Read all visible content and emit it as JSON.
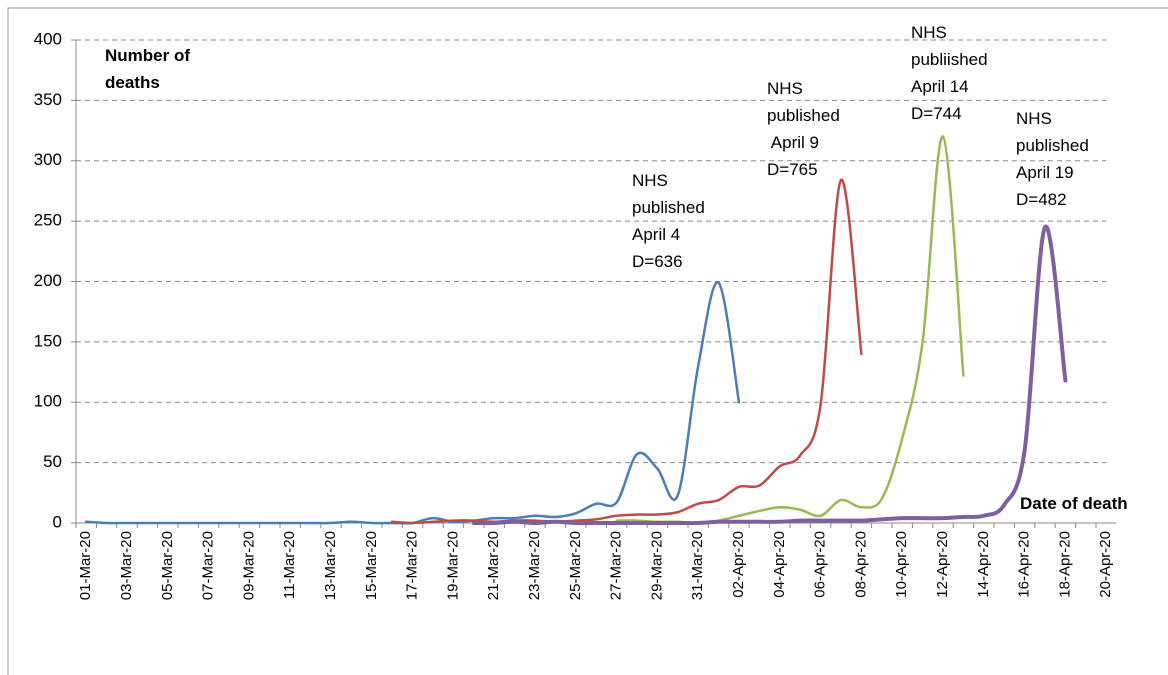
{
  "chart_data": {
    "type": "line",
    "y_label_lines": [
      "Number of",
      "deaths"
    ],
    "x_label": "Date of death",
    "categories": [
      "01-Mar-20",
      null,
      "03-Mar-20",
      null,
      "05-Mar-20",
      null,
      "07-Mar-20",
      null,
      "09-Mar-20",
      null,
      "11-Mar-20",
      null,
      "13-Mar-20",
      null,
      "15-Mar-20",
      null,
      "17-Mar-20",
      null,
      "19-Mar-20",
      null,
      "21-Mar-20",
      null,
      "23-Mar-20",
      null,
      "25-Mar-20",
      null,
      "27-Mar-20",
      null,
      "29-Mar-20",
      null,
      "31-Mar-20",
      null,
      "02-Apr-20",
      null,
      "04-Apr-20",
      null,
      "06-Apr-20",
      null,
      "08-Apr-20",
      null,
      "10-Apr-20",
      null,
      "12-Apr-20",
      null,
      "14-Apr-20",
      null,
      "16-Apr-20",
      null,
      "18-Apr-20",
      null,
      "20-Apr-20"
    ],
    "ylim": [
      0,
      400
    ],
    "yticks": [
      0,
      50,
      100,
      150,
      200,
      250,
      300,
      350,
      400
    ],
    "grid": true,
    "series": [
      {
        "color": "#4a7ebb",
        "width": 2.5,
        "values": [
          1,
          0,
          0,
          0,
          0,
          0,
          0,
          0,
          0,
          0,
          0,
          0,
          0,
          1,
          0,
          0,
          0,
          4,
          1,
          2,
          4,
          4,
          6,
          5,
          8,
          16,
          17,
          57,
          45,
          23,
          130,
          199,
          100,
          null,
          null,
          null,
          null,
          null,
          null,
          null,
          null,
          null,
          null,
          null,
          null,
          null,
          null,
          null,
          null,
          null,
          null
        ]
      },
      {
        "color": "#be4b48",
        "width": 2.5,
        "values": [
          null,
          null,
          null,
          null,
          null,
          null,
          null,
          null,
          null,
          null,
          null,
          null,
          null,
          null,
          null,
          1,
          0,
          1,
          2,
          2,
          1,
          2,
          2,
          1,
          2,
          3,
          6,
          7,
          7,
          9,
          16,
          19,
          30,
          31,
          47,
          56,
          98,
          284,
          140,
          null,
          null,
          null,
          null,
          null,
          null,
          null,
          null,
          null,
          null,
          null,
          null
        ]
      },
      {
        "color": "#98b954",
        "width": 2.5,
        "values": [
          null,
          null,
          null,
          null,
          null,
          null,
          null,
          null,
          null,
          null,
          null,
          null,
          null,
          null,
          null,
          null,
          null,
          null,
          null,
          null,
          null,
          null,
          null,
          null,
          null,
          null,
          2,
          2,
          1,
          1,
          0,
          2,
          6,
          10,
          13,
          11,
          6,
          19,
          13,
          20,
          70,
          150,
          320,
          122,
          null,
          null,
          null,
          null,
          null,
          null,
          null
        ]
      },
      {
        "color": "#7d60a0",
        "width": 4,
        "values": [
          null,
          null,
          null,
          null,
          null,
          null,
          null,
          null,
          null,
          null,
          null,
          null,
          null,
          null,
          null,
          null,
          null,
          null,
          null,
          0,
          0,
          1,
          0,
          1,
          0,
          0,
          0,
          0,
          0,
          0,
          0,
          1,
          1,
          1,
          1,
          2,
          2,
          2,
          2,
          3,
          4,
          4,
          4,
          5,
          6,
          15,
          60,
          245,
          118,
          null,
          null
        ]
      }
    ],
    "annotations": [
      {
        "lines": [
          "NHS",
          "published",
          "April 4",
          "D=636"
        ]
      },
      {
        "lines": [
          "NHS",
          "published",
          " April 9",
          "D=765"
        ]
      },
      {
        "lines": [
          "NHS",
          "publiished",
          "April 14",
          "D=744"
        ]
      },
      {
        "lines": [
          "NHS",
          "published",
          "April 19",
          "D=482"
        ]
      }
    ]
  }
}
